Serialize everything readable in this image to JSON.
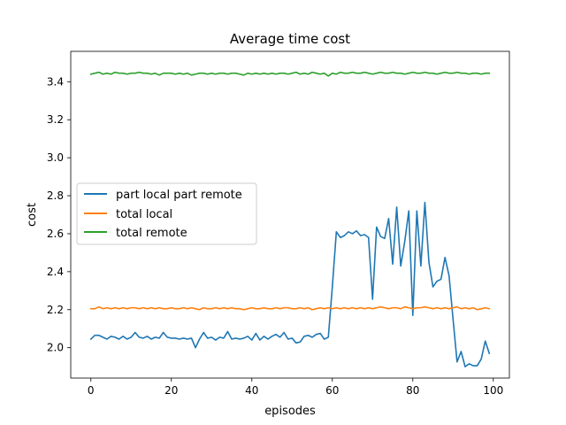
{
  "chart_data": {
    "type": "line",
    "title": "Average time cost",
    "xlabel": "episodes",
    "ylabel": "cost",
    "xlim": [
      -5,
      104
    ],
    "ylim": [
      1.84,
      3.56
    ],
    "xticks": [
      0,
      20,
      40,
      60,
      80,
      100
    ],
    "yticks": [
      2.0,
      2.2,
      2.4,
      2.6,
      2.8,
      3.0,
      3.2,
      3.4
    ],
    "ytick_labels": [
      "2.0",
      "2.2",
      "2.4",
      "2.6",
      "2.8",
      "3.0",
      "3.2",
      "3.4"
    ],
    "grid": false,
    "legend_position": "center-left",
    "x": [
      0,
      1,
      2,
      3,
      4,
      5,
      6,
      7,
      8,
      9,
      10,
      11,
      12,
      13,
      14,
      15,
      16,
      17,
      18,
      19,
      20,
      21,
      22,
      23,
      24,
      25,
      26,
      27,
      28,
      29,
      30,
      31,
      32,
      33,
      34,
      35,
      36,
      37,
      38,
      39,
      40,
      41,
      42,
      43,
      44,
      45,
      46,
      47,
      48,
      49,
      50,
      51,
      52,
      53,
      54,
      55,
      56,
      57,
      58,
      59,
      60,
      61,
      62,
      63,
      64,
      65,
      66,
      67,
      68,
      69,
      70,
      71,
      72,
      73,
      74,
      75,
      76,
      77,
      78,
      79,
      80,
      81,
      82,
      83,
      84,
      85,
      86,
      87,
      88,
      89,
      90,
      91,
      92,
      93,
      94,
      95,
      96,
      97,
      98,
      99
    ],
    "series": [
      {
        "name": "part local part remote",
        "color": "#1f77b4",
        "values": [
          2.045,
          2.065,
          2.065,
          2.055,
          2.045,
          2.06,
          2.055,
          2.045,
          2.06,
          2.045,
          2.055,
          2.08,
          2.055,
          2.05,
          2.06,
          2.045,
          2.055,
          2.05,
          2.08,
          2.055,
          2.05,
          2.05,
          2.045,
          2.05,
          2.045,
          2.05,
          2.0,
          2.045,
          2.08,
          2.05,
          2.055,
          2.04,
          2.055,
          2.05,
          2.085,
          2.045,
          2.05,
          2.045,
          2.05,
          2.06,
          2.04,
          2.075,
          2.04,
          2.06,
          2.045,
          2.06,
          2.07,
          2.055,
          2.08,
          2.045,
          2.05,
          2.025,
          2.03,
          2.06,
          2.065,
          2.055,
          2.07,
          2.075,
          2.045,
          2.055,
          2.32,
          2.61,
          2.58,
          2.59,
          2.61,
          2.6,
          2.615,
          2.59,
          2.595,
          2.58,
          2.255,
          2.635,
          2.585,
          2.575,
          2.68,
          2.44,
          2.74,
          2.43,
          2.56,
          2.72,
          2.17,
          2.72,
          2.43,
          2.765,
          2.45,
          2.32,
          2.35,
          2.36,
          2.475,
          2.38,
          2.15,
          1.925,
          1.98,
          1.9,
          1.915,
          1.905,
          1.905,
          1.94,
          2.035,
          1.97
        ]
      },
      {
        "name": "total local",
        "color": "#ff7f0e",
        "values": [
          2.205,
          2.205,
          2.215,
          2.205,
          2.21,
          2.205,
          2.21,
          2.205,
          2.21,
          2.205,
          2.21,
          2.21,
          2.205,
          2.21,
          2.205,
          2.21,
          2.205,
          2.21,
          2.205,
          2.205,
          2.21,
          2.205,
          2.205,
          2.21,
          2.205,
          2.21,
          2.205,
          2.2,
          2.21,
          2.205,
          2.205,
          2.21,
          2.205,
          2.21,
          2.205,
          2.21,
          2.205,
          2.205,
          2.2,
          2.205,
          2.21,
          2.205,
          2.205,
          2.21,
          2.205,
          2.205,
          2.21,
          2.205,
          2.21,
          2.21,
          2.205,
          2.205,
          2.21,
          2.205,
          2.21,
          2.2,
          2.205,
          2.21,
          2.205,
          2.21,
          2.205,
          2.21,
          2.205,
          2.21,
          2.205,
          2.21,
          2.205,
          2.21,
          2.205,
          2.21,
          2.205,
          2.21,
          2.215,
          2.21,
          2.205,
          2.21,
          2.21,
          2.205,
          2.215,
          2.21,
          2.205,
          2.21,
          2.21,
          2.215,
          2.21,
          2.205,
          2.21,
          2.205,
          2.21,
          2.205,
          2.21,
          2.215,
          2.205,
          2.21,
          2.205,
          2.21,
          2.2,
          2.205,
          2.21,
          2.205
        ]
      },
      {
        "name": "total remote",
        "color": "#2ca02c",
        "values": [
          3.44,
          3.445,
          3.45,
          3.44,
          3.445,
          3.44,
          3.45,
          3.445,
          3.445,
          3.44,
          3.445,
          3.445,
          3.45,
          3.445,
          3.445,
          3.44,
          3.445,
          3.435,
          3.445,
          3.445,
          3.445,
          3.44,
          3.445,
          3.44,
          3.445,
          3.435,
          3.44,
          3.445,
          3.445,
          3.44,
          3.445,
          3.44,
          3.445,
          3.445,
          3.44,
          3.445,
          3.445,
          3.44,
          3.435,
          3.445,
          3.44,
          3.445,
          3.44,
          3.445,
          3.44,
          3.445,
          3.44,
          3.445,
          3.445,
          3.44,
          3.445,
          3.45,
          3.44,
          3.445,
          3.44,
          3.45,
          3.445,
          3.44,
          3.445,
          3.43,
          3.445,
          3.44,
          3.45,
          3.445,
          3.445,
          3.45,
          3.445,
          3.445,
          3.45,
          3.445,
          3.44,
          3.445,
          3.45,
          3.445,
          3.445,
          3.45,
          3.445,
          3.445,
          3.44,
          3.445,
          3.45,
          3.445,
          3.445,
          3.45,
          3.445,
          3.445,
          3.44,
          3.445,
          3.45,
          3.445,
          3.445,
          3.45,
          3.445,
          3.445,
          3.44,
          3.445,
          3.445,
          3.44,
          3.445,
          3.445
        ]
      }
    ]
  }
}
